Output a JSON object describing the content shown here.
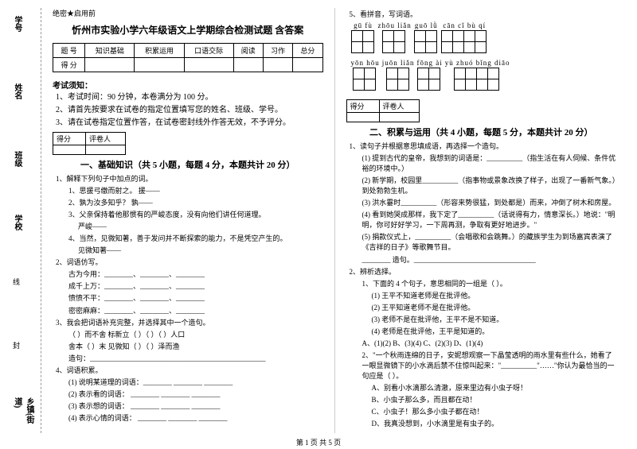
{
  "binding": {
    "labels": [
      "题",
      "学号",
      "姓名",
      "班级",
      "学校",
      "乡镇(街道)"
    ],
    "marks": [
      "…",
      "…",
      "本",
      "内",
      "线",
      "封",
      "…"
    ]
  },
  "header_tag": "绝密★启用前",
  "title": "忻州市实验小学六年级语文上学期综合检测试题 含答案",
  "score_table": {
    "cols": [
      "题 号",
      "知识基础",
      "积累运用",
      "口语交际",
      "阅读",
      "习作",
      "总分"
    ],
    "row2": "得 分"
  },
  "notice_head": "考试须知：",
  "notice": [
    "1、考试时间：90 分钟，本卷满分为 100 分。",
    "2、请首先按要求在试卷的指定位置填写您的姓名、班级、学号。",
    "3、请在试卷指定位置作答，在试卷密封线外作答无效，不予评分。"
  ],
  "mini_score": {
    "c1": "得分",
    "c2": "评卷人"
  },
  "part1_title": "一、基础知识（共 5 小题，每题 4 分，本题共计 20 分）",
  "q1": {
    "stem": "1、解释下列句子中加点的词。",
    "items": [
      "1、思援弓缴而射之。    援——",
      "2、孰为汝多知乎？      孰——",
      "3、父亲保持着他那惯有的严峻态度，没有向他们讲任何道理。",
      "                       严峻——",
      "4、当然，见微知著，善于发问并不断探索的能力，不是凭空产生的。",
      "                       见微知著——"
    ]
  },
  "q2": {
    "stem": "2、词语仿写。",
    "items": [
      "古为今用：________、________、________",
      "成千上万：________、________、________",
      "愤愤不平：________、________、________",
      "密密麻麻：________、________、________"
    ]
  },
  "q3": {
    "stem": "3、我会把词语补充完整，并选择其中一个造句。",
    "line1": "（    ）而不舍        标新立（    ）（    ）（    ）人口",
    "line2": "舍本（    ）末        见微知（    ）（    ）泽而渔",
    "make": "造句：_________________________________________________"
  },
  "q4": {
    "stem": "4、词语积累。",
    "items": [
      "(1) 说明某道理的词语：________ ________ ________",
      "(2) 表示看的词语：    ________ ________ ________",
      "(3) 表示想的词语：    ________ ________ ________",
      "(4) 表示心情的词语：  ________ ________ ________"
    ]
  },
  "q5": {
    "stem": "5、看拼音，写词语。",
    "pinyin_row1": [
      {
        "py": "gū fù",
        "cells": 2
      },
      {
        "py": "zhōu liǎn",
        "cells": 2
      },
      {
        "py": "guō lǜ",
        "cells": 2
      },
      {
        "py": "cān cǐ bù qí",
        "cells": 4
      }
    ],
    "pinyin_row2": [
      {
        "py": "yōn hōu",
        "cells": 2
      },
      {
        "py": "juōn liǎn",
        "cells": 2
      },
      {
        "py": "fōng ài",
        "cells": 2
      },
      {
        "py": "yù zhuó bǐng diāo",
        "cells": 4
      }
    ]
  },
  "part2_title": "二、积累与运用（共 4 小题，每题 5 分，本题共计 20 分）",
  "p2q1": {
    "stem": "1、读句子并根据意思填成语，再选择一个造句。",
    "items": [
      "(1) 提到古代的皇帝，我想到的词语是：__________（指生活在有人伺候、条件优裕的环境中。）",
      "(2) 新学期，校园里__________（指事物或景象改换了样子，出现了一番新气象。）到处勃勃生机。",
      "(3) 洪水霎时__________（形容来势很猛，到处都是）而来，冲倒了树木和房屋。",
      "(4) 看到她哭成那样，我下定了__________（话说得有力，情意深长。）地说：\"明明，你可好好学习，一下周再测，争取有更好地进步。\"",
      "(5) 捐款仪式上，__________（会唱歌和会跳舞。）的藏族学生为到场嘉宾表演了《吉祥的日子》等歌舞节目。"
    ],
    "make": "________ 造句。__________________________________"
  },
  "p2q2": {
    "stem": "2、辨析选择。",
    "g1_head": "1、下面的 4 个句子，意思相同的一组是（        ）。",
    "g1": [
      "(1) 王平不知道老师是在批评他。",
      "(2) 王平知道老师不是在批评他。",
      "(3) 老师不是在批评他，王平不是不知道。",
      "(4) 老师是在批评他，王平是知道的。"
    ],
    "g1_opts": "A、(1)(2)  B、(3)(4)  C、(2)(3)  D、(1)(4)",
    "g2_head": "2、\"一个秋雨连绵的日子，安妮想观察一下晶莹透明的雨水里有些什么，她看了一眼显微镜下的小水滴后禁不住惊叫起来：\"__________\"……\"你认为最恰当的一句应是（        ）。",
    "g2": [
      "A、别看小水滴那么清澈，原来里边有小虫子呀！",
      "B、小虫子那么多，而且都在动！",
      "C、小虫子！那么多小虫子都在动！",
      "D、我真没想到，小水滴里是有虫子的。"
    ]
  },
  "footer": "第 1 页 共 5 页"
}
